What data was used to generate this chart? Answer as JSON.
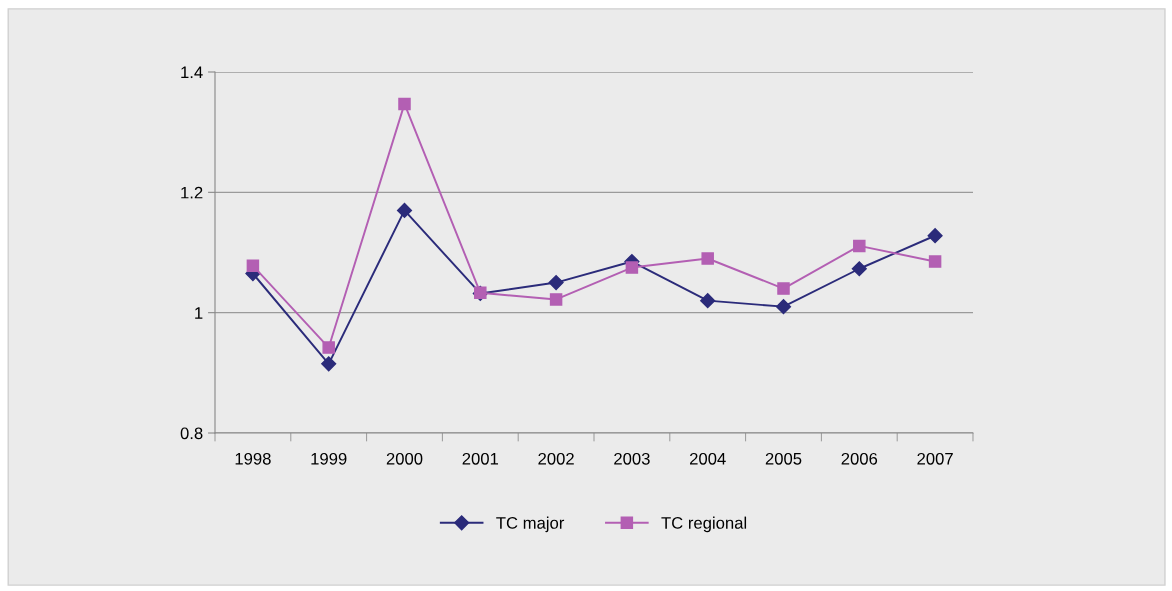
{
  "chart_data": {
    "type": "line",
    "categories": [
      "1998",
      "1999",
      "2000",
      "2001",
      "2002",
      "2003",
      "2004",
      "2005",
      "2006",
      "2007"
    ],
    "series": [
      {
        "name": "TC major",
        "color": "#2b2b7a",
        "marker": "diamond",
        "values": [
          1.065,
          0.915,
          1.17,
          1.032,
          1.05,
          1.085,
          1.02,
          1.01,
          1.073,
          1.128
        ]
      },
      {
        "name": "TC regional",
        "color": "#b35fb3",
        "marker": "square",
        "values": [
          1.078,
          0.942,
          1.347,
          1.033,
          1.022,
          1.075,
          1.09,
          1.04,
          1.111,
          1.085
        ]
      }
    ],
    "ylim": [
      0.8,
      1.4
    ],
    "yticks": [
      0.8,
      1,
      1.2,
      1.4
    ],
    "grid": "y",
    "legend": "bottom",
    "line_style": "solid"
  }
}
